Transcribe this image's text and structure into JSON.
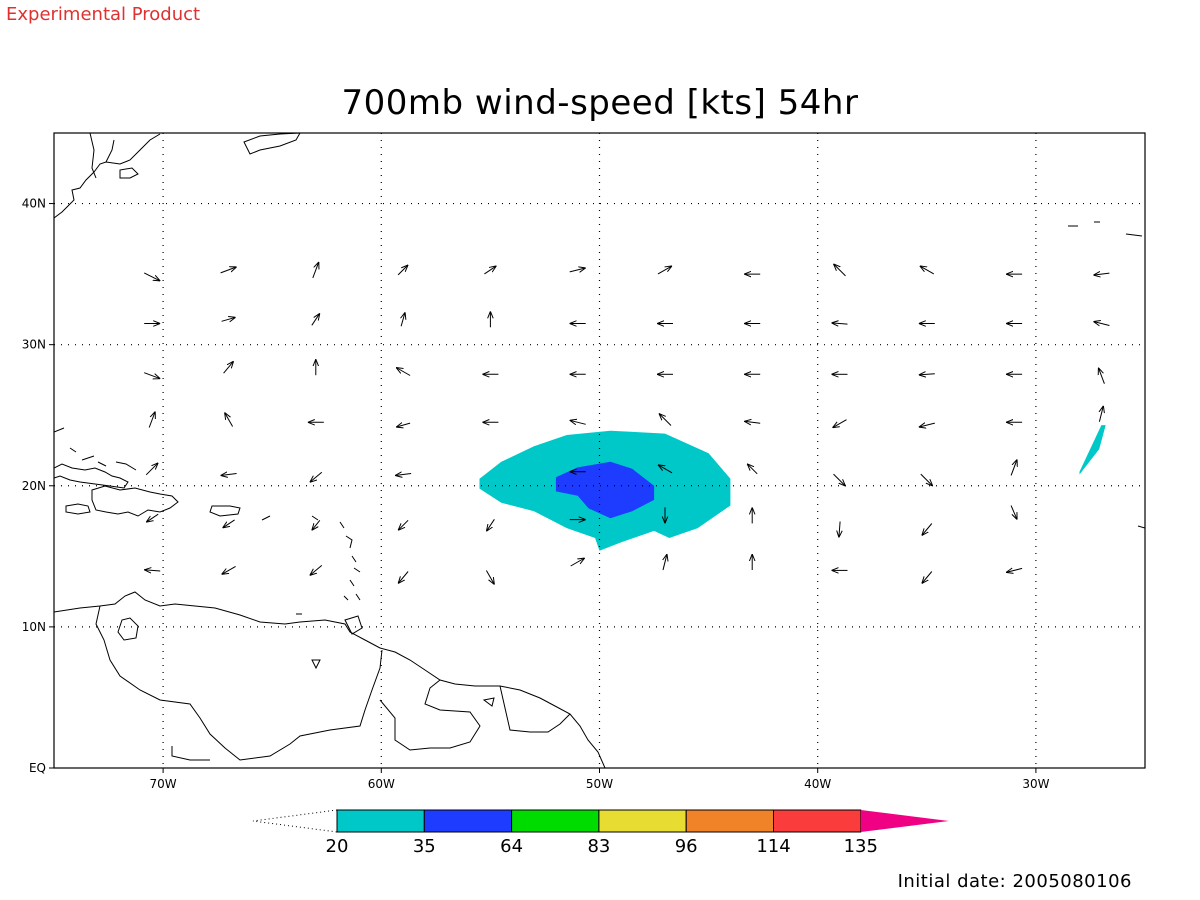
{
  "header": {
    "experimental_label": "Experimental Product",
    "title": "700mb wind-speed [kts] 54hr"
  },
  "map": {
    "lon_range": [
      -75,
      -25
    ],
    "lat_range": [
      0,
      45
    ],
    "lon_ticks": [
      {
        "value": -70,
        "label": "70W"
      },
      {
        "value": -60,
        "label": "60W"
      },
      {
        "value": -50,
        "label": "50W"
      },
      {
        "value": -40,
        "label": "40W"
      },
      {
        "value": -30,
        "label": "30W"
      }
    ],
    "lat_ticks": [
      {
        "value": 0,
        "label": "EQ"
      },
      {
        "value": 10,
        "label": "10N"
      },
      {
        "value": 20,
        "label": "20N"
      },
      {
        "value": 30,
        "label": "30N"
      },
      {
        "value": 40,
        "label": "40N"
      }
    ],
    "gridlines": "dotted",
    "coastline_color": "#000000"
  },
  "colorbar": {
    "levels": [
      "20",
      "35",
      "64",
      "83",
      "96",
      "114",
      "135"
    ],
    "colors": [
      "#00c8c8",
      "#1e3cff",
      "#00dc00",
      "#e6dc32",
      "#f08228",
      "#fa3c3c",
      "#f00082"
    ],
    "outline_color": "#000000"
  },
  "footer": {
    "initial_date": "Initial date: 2005080106"
  },
  "chart_data": {
    "type": "heatmap",
    "title": "700mb wind-speed [kts] 54hr",
    "shaded_regions": [
      {
        "level": "20-35",
        "color": "#00c8c8",
        "outline": [
          [
            -55.5,
            20.5
          ],
          [
            -54.5,
            21.7
          ],
          [
            -53.0,
            22.8
          ],
          [
            -51.5,
            23.6
          ],
          [
            -49.5,
            23.9
          ],
          [
            -47.0,
            23.7
          ],
          [
            -45.0,
            22.3
          ],
          [
            -44.0,
            20.5
          ],
          [
            -44.0,
            18.6
          ],
          [
            -45.5,
            17.0
          ],
          [
            -46.8,
            16.3
          ],
          [
            -47.5,
            16.8
          ],
          [
            -49.0,
            16.0
          ],
          [
            -50.0,
            15.4
          ],
          [
            -50.2,
            16.3
          ],
          [
            -51.5,
            17.0
          ],
          [
            -53.0,
            18.2
          ],
          [
            -54.5,
            18.8
          ],
          [
            -55.5,
            19.8
          ]
        ]
      },
      {
        "level": "35-64",
        "color": "#1e3cff",
        "outline": [
          [
            -52.0,
            20.6
          ],
          [
            -51.0,
            21.3
          ],
          [
            -49.5,
            21.7
          ],
          [
            -48.5,
            21.2
          ],
          [
            -47.5,
            20.0
          ],
          [
            -47.5,
            19.0
          ],
          [
            -48.5,
            18.2
          ],
          [
            -49.5,
            17.7
          ],
          [
            -50.5,
            18.4
          ],
          [
            -51.0,
            19.3
          ],
          [
            -52.0,
            19.6
          ]
        ]
      },
      {
        "level": "20-35",
        "color": "#00c8c8",
        "outline": [
          [
            -28.0,
            21.0
          ],
          [
            -27.0,
            24.3
          ],
          [
            -26.8,
            24.3
          ],
          [
            -27.1,
            22.6
          ],
          [
            -28.0,
            20.8
          ]
        ]
      }
    ],
    "wind_vectors": [
      {
        "lon": -70.5,
        "lat": 34.8,
        "u": 4,
        "v": -2
      },
      {
        "lon": -67,
        "lat": 35.3,
        "u": 4,
        "v": 1.5
      },
      {
        "lon": -63,
        "lat": 35.3,
        "u": 1.5,
        "v": 4
      },
      {
        "lon": -59,
        "lat": 35.3,
        "u": 2.5,
        "v": 2.5
      },
      {
        "lon": -55,
        "lat": 35.3,
        "u": 3,
        "v": 2
      },
      {
        "lon": -51,
        "lat": 35.3,
        "u": 4,
        "v": 1
      },
      {
        "lon": -47,
        "lat": 35.3,
        "u": 3.5,
        "v": 2
      },
      {
        "lon": -43,
        "lat": 35.0,
        "u": -4,
        "v": 0
      },
      {
        "lon": -39,
        "lat": 35.3,
        "u": -3,
        "v": 3
      },
      {
        "lon": -35,
        "lat": 35.3,
        "u": -3.5,
        "v": 2
      },
      {
        "lon": -31,
        "lat": 35.0,
        "u": -4,
        "v": 0
      },
      {
        "lon": -27,
        "lat": 35.0,
        "u": -4,
        "v": -0.5
      },
      {
        "lon": -70.5,
        "lat": 31.5,
        "u": 4,
        "v": 0
      },
      {
        "lon": -67,
        "lat": 31.8,
        "u": 3.5,
        "v": 1
      },
      {
        "lon": -63,
        "lat": 31.8,
        "u": 2,
        "v": 3
      },
      {
        "lon": -59,
        "lat": 31.8,
        "u": 1,
        "v": 3.5
      },
      {
        "lon": -55,
        "lat": 31.8,
        "u": 0,
        "v": 4
      },
      {
        "lon": -51,
        "lat": 31.5,
        "u": -4,
        "v": 0
      },
      {
        "lon": -47,
        "lat": 31.5,
        "u": -4,
        "v": 0
      },
      {
        "lon": -43,
        "lat": 31.5,
        "u": -4,
        "v": 0
      },
      {
        "lon": -39,
        "lat": 31.5,
        "u": -4,
        "v": 0.3
      },
      {
        "lon": -35,
        "lat": 31.5,
        "u": -4,
        "v": 0
      },
      {
        "lon": -31,
        "lat": 31.5,
        "u": -4,
        "v": 0
      },
      {
        "lon": -27,
        "lat": 31.5,
        "u": -4,
        "v": 1
      },
      {
        "lon": -70.5,
        "lat": 27.8,
        "u": 4,
        "v": -1.5
      },
      {
        "lon": -67,
        "lat": 28.4,
        "u": 2.5,
        "v": 3
      },
      {
        "lon": -63,
        "lat": 28.4,
        "u": 0,
        "v": 4
      },
      {
        "lon": -59,
        "lat": 28.1,
        "u": -3.5,
        "v": 2
      },
      {
        "lon": -55,
        "lat": 27.9,
        "u": -4,
        "v": 0
      },
      {
        "lon": -51,
        "lat": 27.9,
        "u": -4,
        "v": 0
      },
      {
        "lon": -47,
        "lat": 27.9,
        "u": -4,
        "v": 0
      },
      {
        "lon": -43,
        "lat": 27.9,
        "u": -4,
        "v": 0
      },
      {
        "lon": -39,
        "lat": 27.9,
        "u": -4,
        "v": 0
      },
      {
        "lon": -35,
        "lat": 27.9,
        "u": -4,
        "v": -0.3
      },
      {
        "lon": -31,
        "lat": 27.9,
        "u": -4,
        "v": 0
      },
      {
        "lon": -27,
        "lat": 27.8,
        "u": -1.5,
        "v": 4
      },
      {
        "lon": -70.5,
        "lat": 24.7,
        "u": 1.5,
        "v": 4
      },
      {
        "lon": -67,
        "lat": 24.7,
        "u": -2,
        "v": 3.5
      },
      {
        "lon": -63,
        "lat": 24.5,
        "u": -4,
        "v": 0
      },
      {
        "lon": -59,
        "lat": 24.3,
        "u": -3.5,
        "v": -1
      },
      {
        "lon": -55,
        "lat": 24.5,
        "u": -4,
        "v": 0
      },
      {
        "lon": -51,
        "lat": 24.5,
        "u": -4,
        "v": 1
      },
      {
        "lon": -47,
        "lat": 24.7,
        "u": -3,
        "v": 3
      },
      {
        "lon": -43,
        "lat": 24.5,
        "u": -4,
        "v": 0.5
      },
      {
        "lon": -39,
        "lat": 24.4,
        "u": -3.5,
        "v": -2
      },
      {
        "lon": -35,
        "lat": 24.3,
        "u": -4,
        "v": -1
      },
      {
        "lon": -31,
        "lat": 24.5,
        "u": -4,
        "v": 0
      },
      {
        "lon": -27,
        "lat": 25.1,
        "u": 1,
        "v": 4
      },
      {
        "lon": -70.5,
        "lat": 21.2,
        "u": 3,
        "v": 3
      },
      {
        "lon": -67,
        "lat": 20.8,
        "u": -4,
        "v": -0.5
      },
      {
        "lon": -63,
        "lat": 20.6,
        "u": -3,
        "v": -2.5
      },
      {
        "lon": -59,
        "lat": 20.8,
        "u": -4,
        "v": -0.5
      },
      {
        "lon": -51,
        "lat": 21.0,
        "u": -4,
        "v": 0
      },
      {
        "lon": -47,
        "lat": 21.2,
        "u": -3.5,
        "v": 2
      },
      {
        "lon": -43,
        "lat": 21.2,
        "u": -2.5,
        "v": 2.5
      },
      {
        "lon": -39,
        "lat": 20.4,
        "u": 3,
        "v": -3
      },
      {
        "lon": -35,
        "lat": 20.4,
        "u": 3,
        "v": -3
      },
      {
        "lon": -31,
        "lat": 21.3,
        "u": 1.5,
        "v": 4
      },
      {
        "lon": -70.5,
        "lat": 17.7,
        "u": -3,
        "v": -2
      },
      {
        "lon": -67,
        "lat": 17.3,
        "u": -3,
        "v": -2
      },
      {
        "lon": -63,
        "lat": 17.2,
        "u": -2,
        "v": -2.5
      },
      {
        "lon": -59,
        "lat": 17.2,
        "u": -2.5,
        "v": -2.5
      },
      {
        "lon": -55,
        "lat": 17.2,
        "u": -2,
        "v": -3
      },
      {
        "lon": -51,
        "lat": 17.6,
        "u": 4,
        "v": 0
      },
      {
        "lon": -47,
        "lat": 17.9,
        "u": 0,
        "v": -4
      },
      {
        "lon": -43,
        "lat": 17.9,
        "u": 0,
        "v": 4
      },
      {
        "lon": -39,
        "lat": 16.9,
        "u": -0.3,
        "v": -4
      },
      {
        "lon": -35,
        "lat": 16.9,
        "u": -2.5,
        "v": -3
      },
      {
        "lon": -31,
        "lat": 18.1,
        "u": 1.5,
        "v": -3.5
      },
      {
        "lon": -70.5,
        "lat": 14.0,
        "u": -4,
        "v": 0.3
      },
      {
        "lon": -67,
        "lat": 14.0,
        "u": -3.5,
        "v": -2
      },
      {
        "lon": -63,
        "lat": 14.0,
        "u": -3,
        "v": -2.5
      },
      {
        "lon": -59,
        "lat": 13.5,
        "u": -2.5,
        "v": -3
      },
      {
        "lon": -55,
        "lat": 13.5,
        "u": 2,
        "v": -3.5
      },
      {
        "lon": -51,
        "lat": 14.6,
        "u": 3.5,
        "v": 2
      },
      {
        "lon": -47,
        "lat": 14.6,
        "u": 1,
        "v": 4
      },
      {
        "lon": -43,
        "lat": 14.6,
        "u": 0,
        "v": 4
      },
      {
        "lon": -39,
        "lat": 14.0,
        "u": -4,
        "v": 0
      },
      {
        "lon": -35,
        "lat": 13.5,
        "u": -2.5,
        "v": -3
      },
      {
        "lon": -31,
        "lat": 14.0,
        "u": -4,
        "v": -1
      }
    ]
  }
}
